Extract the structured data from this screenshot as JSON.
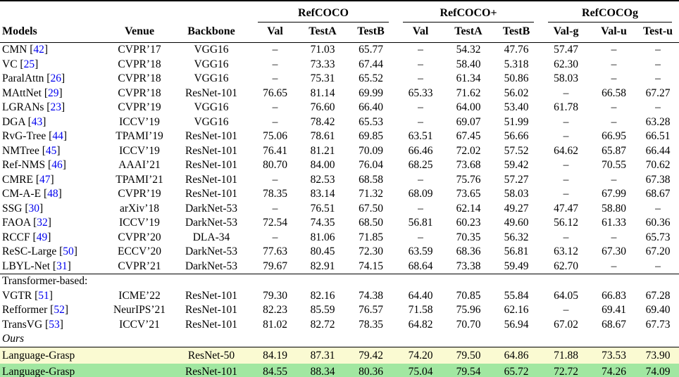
{
  "colors": {
    "highlight_ours_resnet50_row": "#FAFAD2",
    "highlight_ours_resnet101_row": "#A1E7A1",
    "citation_link": "#0000EE"
  },
  "table": {
    "group_headers": [
      {
        "label": "RefCOCO",
        "cols": [
          "Val",
          "TestA",
          "TestB"
        ]
      },
      {
        "label": "RefCOCO+",
        "cols": [
          "Val",
          "TestA",
          "TestB"
        ]
      },
      {
        "label": "RefCOCOg",
        "cols": [
          "Val-g",
          "Val-u",
          "Test-u"
        ]
      }
    ],
    "base_headers": [
      "Models",
      "Venue",
      "Backbone"
    ],
    "rows": [
      {
        "type": "data",
        "model": "CMN",
        "cite": "42",
        "venue": "CVPR’17",
        "backbone": "VGG16",
        "vals": [
          "–",
          "71.03",
          "65.77",
          "–",
          "54.32",
          "47.76",
          "57.47",
          "–",
          "–"
        ]
      },
      {
        "type": "data",
        "model": "VC",
        "cite": "25",
        "venue": "CVPR’18",
        "backbone": "VGG16",
        "vals": [
          "–",
          "73.33",
          "67.44",
          "–",
          "58.40",
          "5.318",
          "62.30",
          "–",
          "–"
        ]
      },
      {
        "type": "data",
        "model": "ParalAttn",
        "cite": "26",
        "venue": "CVPR’18",
        "backbone": "VGG16",
        "vals": [
          "–",
          "75.31",
          "65.52",
          "–",
          "61.34",
          "50.86",
          "58.03",
          "–",
          "–"
        ]
      },
      {
        "type": "data",
        "model": "MAttNet",
        "cite": "29",
        "venue": "CVPR’18",
        "backbone": "ResNet-101",
        "vals": [
          "76.65",
          "81.14",
          "69.99",
          "65.33",
          "71.62",
          "56.02",
          "–",
          "66.58",
          "67.27"
        ]
      },
      {
        "type": "data",
        "model": "LGRANs",
        "cite": "23",
        "venue": "CVPR’19",
        "backbone": "VGG16",
        "vals": [
          "–",
          "76.60",
          "66.40",
          "–",
          "64.00",
          "53.40",
          "61.78",
          "–",
          "–"
        ]
      },
      {
        "type": "data",
        "model": "DGA",
        "cite": "43",
        "venue": "ICCV’19",
        "backbone": "VGG16",
        "vals": [
          "–",
          "78.42",
          "65.53",
          "–",
          "69.07",
          "51.99",
          "–",
          "–",
          "63.28"
        ]
      },
      {
        "type": "data",
        "model": "RvG-Tree",
        "cite": "44",
        "venue": "TPAMI’19",
        "backbone": "ResNet-101",
        "vals": [
          "75.06",
          "78.61",
          "69.85",
          "63.51",
          "67.45",
          "56.66",
          "–",
          "66.95",
          "66.51"
        ]
      },
      {
        "type": "data",
        "model": "NMTree",
        "cite": "45",
        "venue": "ICCV’19",
        "backbone": "ResNet-101",
        "vals": [
          "76.41",
          "81.21",
          "70.09",
          "66.46",
          "72.02",
          "57.52",
          "64.62",
          "65.87",
          "66.44"
        ]
      },
      {
        "type": "data",
        "model": "Ref-NMS",
        "cite": "46",
        "venue": "AAAI’21",
        "backbone": "ResNet-101",
        "vals": [
          "80.70",
          "84.00",
          "76.04",
          "68.25",
          "73.68",
          "59.42",
          "–",
          "70.55",
          "70.62"
        ]
      },
      {
        "type": "data",
        "model": "CMRE",
        "cite": "47",
        "venue": "TPAMI’21",
        "backbone": "ResNet-101",
        "vals": [
          "–",
          "82.53",
          "68.58",
          "–",
          "75.76",
          "57.27",
          "–",
          "–",
          "67.38"
        ]
      },
      {
        "type": "data",
        "model": "CM-A-E",
        "cite": "48",
        "venue": "CVPR’19",
        "backbone": "ResNet-101",
        "vals": [
          "78.35",
          "83.14",
          "71.32",
          "68.09",
          "73.65",
          "58.03",
          "–",
          "67.99",
          "68.67"
        ]
      },
      {
        "type": "data",
        "model": "SSG",
        "cite": "30",
        "venue": "arXiv’18",
        "backbone": "DarkNet-53",
        "vals": [
          "–",
          "76.51",
          "67.50",
          "–",
          "62.14",
          "49.27",
          "47.47",
          "58.80",
          "–"
        ]
      },
      {
        "type": "data",
        "model": "FAOA",
        "cite": "32",
        "venue": "ICCV’19",
        "backbone": "DarkNet-53",
        "vals": [
          "72.54",
          "74.35",
          "68.50",
          "56.81",
          "60.23",
          "49.60",
          "56.12",
          "61.33",
          "60.36"
        ]
      },
      {
        "type": "data",
        "model": "RCCF",
        "cite": "49",
        "venue": "CVPR’20",
        "backbone": "DLA-34",
        "vals": [
          "–",
          "81.06",
          "71.85",
          "–",
          "70.35",
          "56.32",
          "–",
          "–",
          "65.73"
        ]
      },
      {
        "type": "data",
        "model": "ReSC-Large",
        "cite": "50",
        "venue": "ECCV’20",
        "backbone": "DarkNet-53",
        "vals": [
          "77.63",
          "80.45",
          "72.30",
          "63.59",
          "68.36",
          "56.81",
          "63.12",
          "67.30",
          "67.20"
        ]
      },
      {
        "type": "data",
        "model": "LBYL-Net",
        "cite": "31",
        "venue": "CVPR’21",
        "backbone": "DarkNet-53",
        "vals": [
          "79.67",
          "82.91",
          "74.15",
          "68.64",
          "73.38",
          "59.49",
          "62.70",
          "–",
          "–"
        ]
      },
      {
        "type": "section",
        "label": "Transformer-based:",
        "italic": false,
        "rule_above": true
      },
      {
        "type": "data",
        "model": "VGTR",
        "cite": "51",
        "venue": "ICME’22",
        "backbone": "ResNet-101",
        "vals": [
          "79.30",
          "82.16",
          "74.38",
          "64.40",
          "70.85",
          "55.84",
          "64.05",
          "66.83",
          "67.28"
        ]
      },
      {
        "type": "data",
        "model": "Refformer",
        "cite": "52",
        "venue": "NeurIPS’21",
        "backbone": "ResNet-101",
        "vals": [
          "82.23",
          "85.59",
          "76.57",
          "71.58",
          "75.96",
          "62.16",
          "–",
          "69.41",
          "69.40"
        ]
      },
      {
        "type": "data",
        "model": "TransVG",
        "cite": "53",
        "venue": "ICCV’21",
        "backbone": "ResNet-101",
        "vals": [
          "81.02",
          "82.72",
          "78.35",
          "64.82",
          "70.70",
          "56.94",
          "67.02",
          "68.67",
          "67.73"
        ]
      },
      {
        "type": "section",
        "label": "Ours",
        "italic": true
      },
      {
        "type": "data",
        "model": "Language-Grasp",
        "cite": "",
        "venue": "",
        "backbone": "ResNet-50",
        "bg": "#FAFAD2",
        "rule_above": true,
        "vals": [
          "84.19",
          "87.31",
          "79.42",
          "74.20",
          "79.50",
          "64.86",
          "71.88",
          "73.53",
          "73.90"
        ]
      },
      {
        "type": "data",
        "model": "Language-Grasp",
        "cite": "",
        "venue": "",
        "backbone": "ResNet-101",
        "bg": "#A1E7A1",
        "vals": [
          "84.55",
          "88.34",
          "80.36",
          "75.04",
          "79.54",
          "65.72",
          "72.72",
          "74.26",
          "74.09"
        ]
      }
    ]
  }
}
